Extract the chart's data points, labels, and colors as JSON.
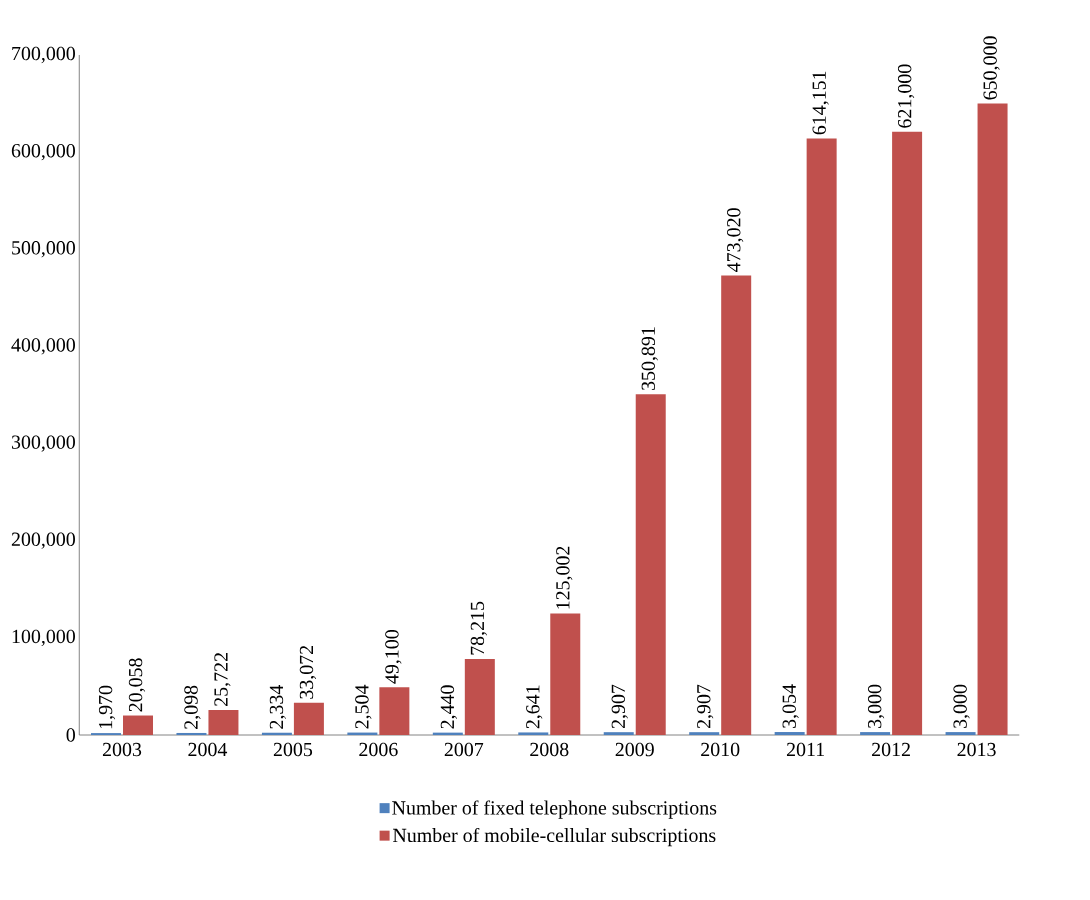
{
  "chart_data": {
    "type": "bar",
    "categories": [
      "2003",
      "2004",
      "2005",
      "2006",
      "2007",
      "2008",
      "2009",
      "2010",
      "2011",
      "2012",
      "2013"
    ],
    "series": [
      {
        "name": "Number of fixed telephone subscriptions",
        "color": "#4f81bd",
        "values": [
          1970,
          2098,
          2334,
          2504,
          2440,
          2641,
          2907,
          2907,
          3054,
          3000,
          3000
        ],
        "value_labels": [
          "1,970",
          "2,098",
          "2,334",
          "2,504",
          "2,440",
          "2,641",
          "2,907",
          "2,907",
          "3,054",
          "3,000",
          "3,000"
        ]
      },
      {
        "name": "Number of mobile-cellular subscriptions",
        "color": "#c0504d",
        "values": [
          20058,
          25722,
          33072,
          49100,
          78215,
          125002,
          350891,
          473020,
          614151,
          621000,
          650000
        ],
        "value_labels": [
          "20,058",
          "25,722",
          "33,072",
          "49,100",
          "78,215",
          "125,002",
          "350,891",
          "473,020",
          "614,151",
          "621,000",
          "650,000"
        ]
      }
    ],
    "ylim": [
      0,
      700000
    ],
    "yticks": [
      0,
      {
        "value": 100000,
        "label": "100,000"
      },
      {
        "value": 200000,
        "label": "200,000"
      },
      {
        "value": 300000,
        "label": "300,000"
      },
      {
        "value": 400000,
        "label": "400,000"
      },
      {
        "value": 500000,
        "label": "500,000"
      },
      {
        "value": 600000,
        "label": "600,000"
      },
      {
        "value": 700000,
        "label": "700,000"
      }
    ],
    "legend": "bottom",
    "grid": false
  }
}
